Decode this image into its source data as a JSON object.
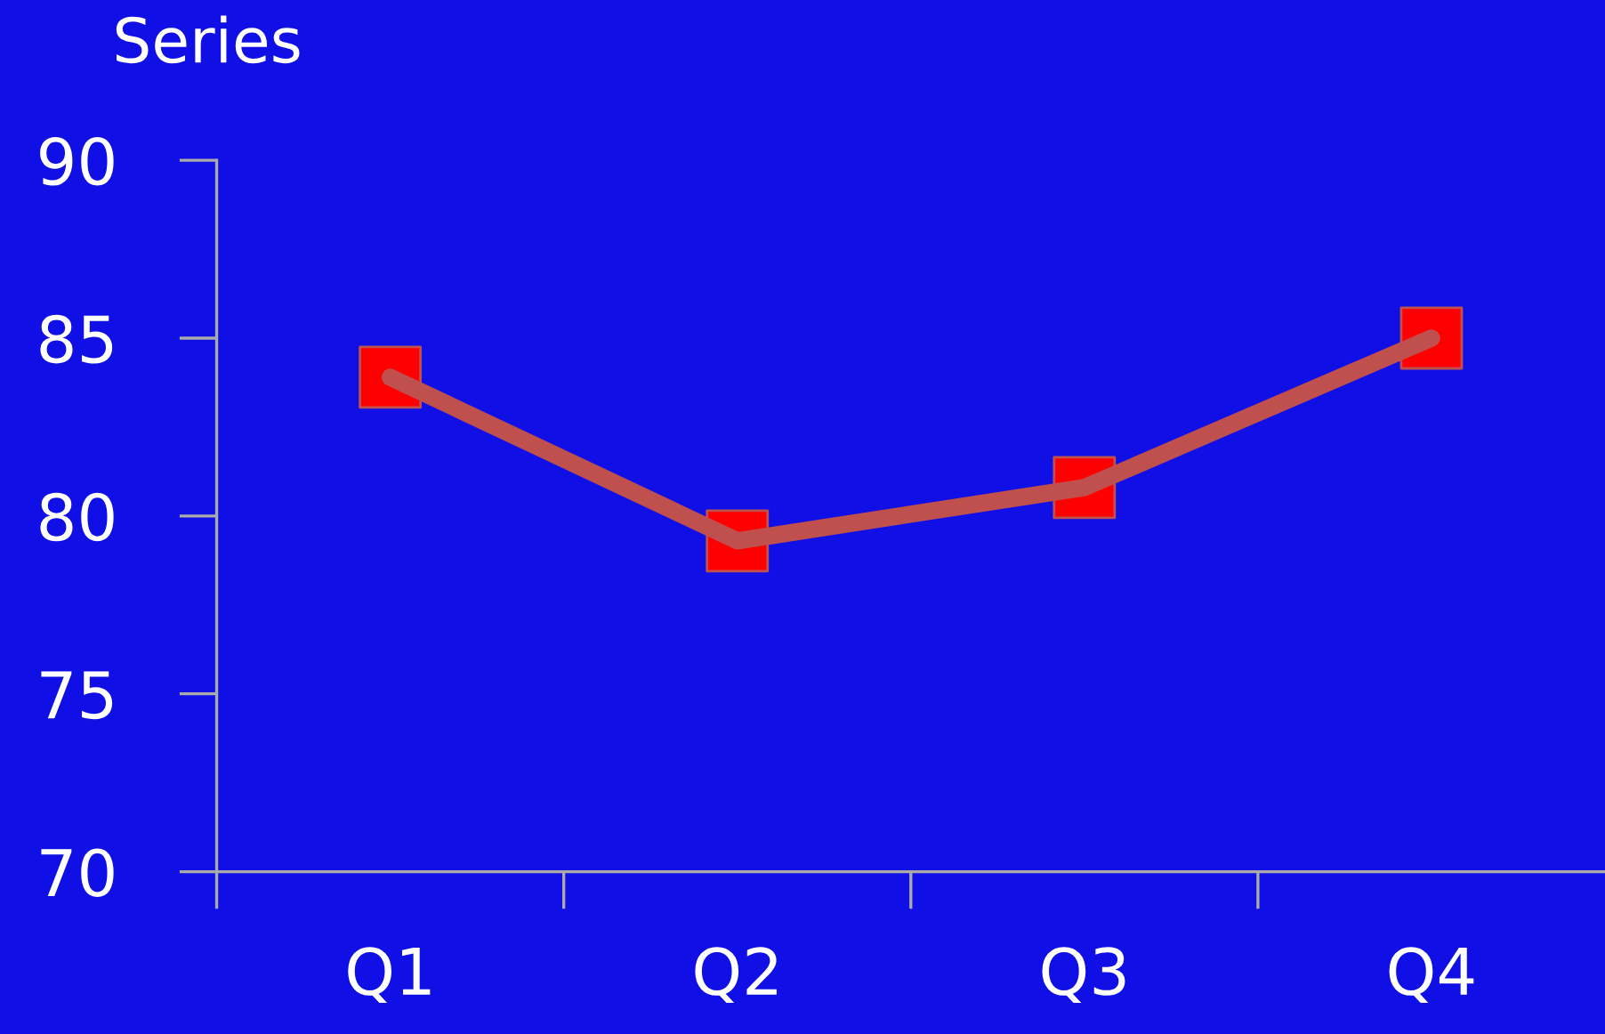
{
  "chart_data": {
    "type": "line",
    "ylabel": "Series",
    "categories": [
      "Q1",
      "Q2",
      "Q3",
      "Q4"
    ],
    "series": [
      {
        "color": "#c0504d",
        "colors": [
          "#ff0000",
          "#ff0000",
          "#ff0000",
          "#ff0000"
        ],
        "values": [
          83.9,
          79.3,
          80.8,
          85.0
        ]
      }
    ],
    "ylim": [
      70,
      90
    ],
    "yticks": [
      70,
      75,
      80,
      85,
      90
    ],
    "grid": false,
    "legend": false,
    "marker": "square",
    "line_style": "solid"
  }
}
